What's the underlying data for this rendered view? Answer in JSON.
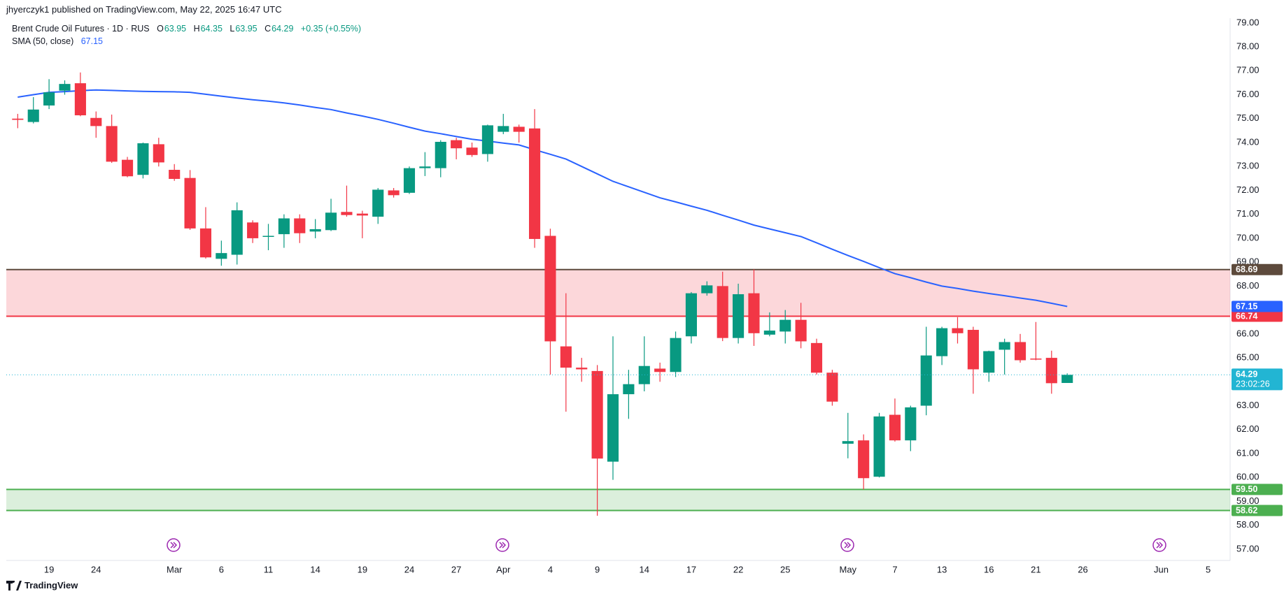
{
  "header": {
    "published": "jhyerczyk1 published on TradingView.com, May 22, 2025 16:47 UTC"
  },
  "chart_data": {
    "type": "candlestick",
    "title": "Brent Crude Oil Futures · 1D · RUS",
    "legend_labels": {
      "open": "O",
      "high": "H",
      "low": "L",
      "close": "C"
    },
    "change": "+0.35 (+0.55%)",
    "up_color": "#089981",
    "down_color": "#f23645",
    "open": [
      75.0,
      74.86,
      75.55,
      76.17,
      76.48,
      75.03,
      74.69,
      73.28,
      72.65,
      73.93,
      72.86,
      72.52,
      70.41,
      69.14,
      69.31,
      70.66,
      70.07,
      70.17,
      70.83,
      70.28,
      70.34,
      71.1,
      71.03,
      70.9,
      72.0,
      71.9,
      72.93,
      72.93,
      74.1,
      73.79,
      73.52,
      74.45,
      74.66,
      74.59,
      70.1,
      65.48,
      64.59,
      64.45,
      60.66,
      63.48,
      63.9,
      64.55,
      64.41,
      65.9,
      67.7,
      68.0,
      65.83,
      67.7,
      65.97,
      66.1,
      66.59,
      65.62,
      64.38,
      61.41,
      61.55,
      60.03,
      62.62,
      61.55,
      63.0,
      65.07,
      66.24,
      66.17,
      64.38,
      65.34,
      65.66,
      64.97,
      65.0,
      63.95
    ],
    "high": [
      75.2,
      75.9,
      76.65,
      76.6,
      76.93,
      75.3,
      75.17,
      73.4,
      74.0,
      74.2,
      73.1,
      72.85,
      71.3,
      69.9,
      71.5,
      70.75,
      70.6,
      71.0,
      71.0,
      70.8,
      71.65,
      72.2,
      71.15,
      72.1,
      72.1,
      73.0,
      73.6,
      74.1,
      74.2,
      74.0,
      74.75,
      75.2,
      74.75,
      75.4,
      70.4,
      67.7,
      65.0,
      64.7,
      65.9,
      64.5,
      65.9,
      64.8,
      66.1,
      67.75,
      68.2,
      68.6,
      68.1,
      68.7,
      66.9,
      67.0,
      67.3,
      65.8,
      64.5,
      62.7,
      61.8,
      62.7,
      63.3,
      63.0,
      66.3,
      66.3,
      66.7,
      66.3,
      65.3,
      65.8,
      66.0,
      66.5,
      65.3,
      64.35
    ],
    "low": [
      74.6,
      74.8,
      75.4,
      76.0,
      75.1,
      74.2,
      73.15,
      72.55,
      72.5,
      73.0,
      72.4,
      70.35,
      69.15,
      68.85,
      68.9,
      69.8,
      69.5,
      69.6,
      69.8,
      70.0,
      70.3,
      70.9,
      70.0,
      70.6,
      71.7,
      71.85,
      72.6,
      72.55,
      73.3,
      73.4,
      73.2,
      74.35,
      74.0,
      69.6,
      64.3,
      62.75,
      64.0,
      58.4,
      59.9,
      62.45,
      63.6,
      64.0,
      64.2,
      65.6,
      67.6,
      65.7,
      65.6,
      65.5,
      65.9,
      65.6,
      65.4,
      64.3,
      63.0,
      60.8,
      59.5,
      60.0,
      61.5,
      61.1,
      62.6,
      64.7,
      65.6,
      63.5,
      64.0,
      64.3,
      64.8,
      64.9,
      63.5,
      63.95
    ],
    "close": [
      74.95,
      75.38,
      76.1,
      76.45,
      75.14,
      74.69,
      73.2,
      72.59,
      73.97,
      73.17,
      72.48,
      70.41,
      69.2,
      69.38,
      71.17,
      70.0,
      70.1,
      70.83,
      70.21,
      70.38,
      71.07,
      70.97,
      70.95,
      72.03,
      71.8,
      72.93,
      73.0,
      74.03,
      73.76,
      73.48,
      74.72,
      74.69,
      74.45,
      69.97,
      65.69,
      64.59,
      64.52,
      60.79,
      63.48,
      63.9,
      64.66,
      64.41,
      65.83,
      67.7,
      68.03,
      65.83,
      67.66,
      66.03,
      66.14,
      66.59,
      65.69,
      64.38,
      63.17,
      61.52,
      59.97,
      62.55,
      61.55,
      62.93,
      65.1,
      66.24,
      66.03,
      64.52,
      65.28,
      65.66,
      64.9,
      64.93,
      63.94,
      64.29
    ],
    "indicator": {
      "name": "SMA (50, close)",
      "color": "#2962ff",
      "values": [
        75.9,
        76.0,
        76.1,
        76.13,
        76.17,
        76.2,
        76.18,
        76.16,
        76.14,
        76.13,
        76.12,
        76.1,
        76.02,
        75.94,
        75.86,
        75.79,
        75.73,
        75.66,
        75.57,
        75.47,
        75.38,
        75.24,
        75.11,
        74.97,
        74.81,
        74.64,
        74.48,
        74.37,
        74.25,
        74.14,
        74.06,
        73.98,
        73.9,
        73.7,
        73.51,
        73.31,
        73.0,
        72.69,
        72.38,
        72.15,
        71.92,
        71.69,
        71.52,
        71.34,
        71.17,
        70.96,
        70.76,
        70.55,
        70.39,
        70.23,
        70.07,
        69.81,
        69.54,
        69.28,
        69.03,
        68.77,
        68.52,
        68.35,
        68.17,
        68.0,
        67.9,
        67.79,
        67.69,
        67.6,
        67.5,
        67.41,
        67.28,
        67.15
      ]
    },
    "zones": [
      {
        "top": 68.69,
        "bottom": 66.74,
        "fill": "rgba(242,54,69,0.2)",
        "top_color": "#5d4a3c",
        "bottom_color": "#f23645"
      },
      {
        "top": {
          "value": 59.5,
          "label": "59.50"
        },
        "bottom": 58.62,
        "fill": "rgba(76,175,80,0.2)",
        "top_color": "#4caf50",
        "bottom_color": "#4caf50"
      }
    ],
    "last_price_color": "#22b5d3",
    "countdown": "23:02:26",
    "xlim": [
      -0.73,
      77.4
    ],
    "ylim": [
      56.53,
      79.2
    ],
    "xticks": [
      {
        "value": 2,
        "label": "19"
      },
      {
        "value": 5,
        "label": "24"
      },
      {
        "value": 10,
        "label": "Mar"
      },
      {
        "value": 13,
        "label": "6"
      },
      {
        "value": 16,
        "label": "11"
      },
      {
        "value": 19,
        "label": "14"
      },
      {
        "value": 22,
        "label": "19"
      },
      {
        "value": 25,
        "label": "24"
      },
      {
        "value": 28,
        "label": "27"
      },
      {
        "value": 31,
        "label": "Apr"
      },
      {
        "value": 34,
        "label": "4"
      },
      {
        "value": 37,
        "label": "9"
      },
      {
        "value": 40,
        "label": "14"
      },
      {
        "value": 43,
        "label": "17"
      },
      {
        "value": 46,
        "label": "22"
      },
      {
        "value": 49,
        "label": "25"
      },
      {
        "value": 53,
        "label": "May"
      },
      {
        "value": 56,
        "label": "7"
      },
      {
        "value": 59,
        "label": "13"
      },
      {
        "value": 62,
        "label": "16"
      },
      {
        "value": 65,
        "label": "21"
      },
      {
        "value": 68,
        "label": "26"
      },
      {
        "value": 73,
        "label": "Jun"
      },
      {
        "value": 76,
        "label": "5"
      }
    ],
    "yticks": [
      {
        "value": 57,
        "label": "57.00"
      },
      {
        "value": 58,
        "label": "58.00"
      },
      {
        "value": 59,
        "label": "59.00"
      },
      {
        "value": 60,
        "label": "60.00"
      },
      {
        "value": 61,
        "label": "61.00"
      },
      {
        "value": 62,
        "label": "62.00"
      },
      {
        "value": 63,
        "label": "63.00"
      },
      {
        "value": 64,
        "label": "64.00"
      },
      {
        "value": 65,
        "label": "65.00"
      },
      {
        "value": 66,
        "label": "66.00"
      },
      {
        "value": 67,
        "label": "67.00"
      },
      {
        "value": 68,
        "label": "68.00"
      },
      {
        "value": 69,
        "label": "69.00"
      },
      {
        "value": 70,
        "label": "70.00"
      },
      {
        "value": 71,
        "label": "71.00"
      },
      {
        "value": 72,
        "label": "72.00"
      },
      {
        "value": 73,
        "label": "73.00"
      },
      {
        "value": 74,
        "label": "74.00"
      },
      {
        "value": 75,
        "label": "75.00"
      },
      {
        "value": 76,
        "label": "76.00"
      },
      {
        "value": 77,
        "label": "77.00"
      },
      {
        "value": 78,
        "label": "78.00"
      },
      {
        "value": 79,
        "label": "79.00"
      }
    ]
  },
  "footer": {
    "brand": "TradingView"
  }
}
